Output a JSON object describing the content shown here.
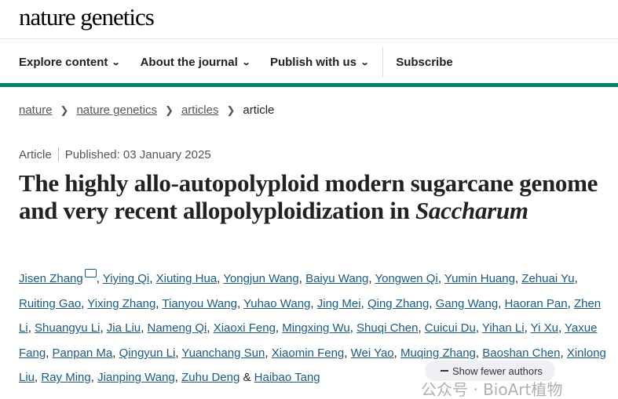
{
  "header": {
    "logo": "nature genetics"
  },
  "nav": {
    "items": [
      {
        "label": "Explore content",
        "has_dropdown": true
      },
      {
        "label": "About the journal",
        "has_dropdown": true
      },
      {
        "label": "Publish with us",
        "has_dropdown": true
      }
    ],
    "subscribe": "Subscribe",
    "accent_color": "#008464"
  },
  "breadcrumb": [
    "nature",
    "nature genetics",
    "articles",
    "article"
  ],
  "article": {
    "type": "Article",
    "published": "Published: 03 January 2025",
    "title_main": "The highly allo-autopolyploid modern sugarcane genome and very recent allopolyploidization in",
    "title_italic": "Saccharum",
    "authors": [
      "Jisen Zhang",
      "Yiying Qi",
      "Xiuting Hua",
      "Yongjun Wang",
      "Baiyu Wang",
      "Yongwen Qi",
      "Yumin Huang",
      "Zehuai Yu",
      "Ruiting Gao",
      "Yixing Zhang",
      "Tianyou Wang",
      "Yuhao Wang",
      "Jing Mei",
      "Qing Zhang",
      "Gang Wang",
      "Haoran Pan",
      "Zhen Li",
      "Shuangyu Li",
      "Jia Liu",
      "Nameng Qi",
      "Xiaoxi Feng",
      "Mingxing Wu",
      "Shuqi Chen",
      "Cuicui Du",
      "Yihan Li",
      "Yi Xu",
      "Yaxue Fang",
      "Panpan Ma",
      "Qingyun Li",
      "Yuanchang Sun",
      "Xiaomin Feng",
      "Wei Yao",
      "Muqing Zhang",
      "Baoshan Chen",
      "Xinlong Liu",
      "Ray Ming",
      "Jianping Wang",
      "Zuhu Deng",
      "Haibao Tang"
    ],
    "last_sep": "&",
    "show_fewer": "Show fewer authors"
  },
  "watermark": "公众号 · BioArt植物"
}
